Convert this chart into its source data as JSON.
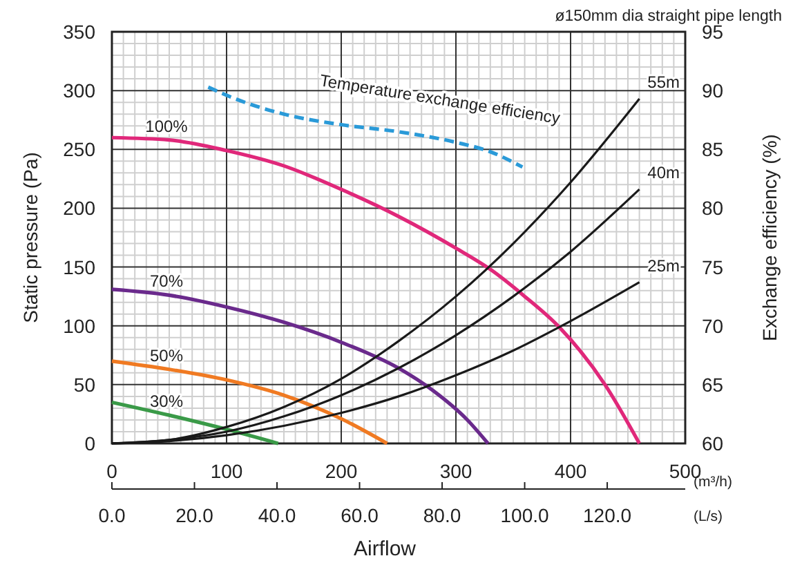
{
  "chart_data": {
    "type": "line",
    "xlabel": "Airflow",
    "ylabel": "Static pressure (Pa)",
    "y2label": "Exchange efficiency (%)",
    "annotations": [
      "ø150mm dia straight pipe length",
      "(m³/h)",
      "(L/s)"
    ],
    "xlim": [
      0,
      500
    ],
    "xticks": [
      0,
      100,
      200,
      300,
      400,
      500
    ],
    "x2lim": [
      0,
      138.9
    ],
    "x2ticks": [
      {
        "value": 0,
        "label": "0.0"
      },
      {
        "value": 20,
        "label": "20.0"
      },
      {
        "value": 40,
        "label": "40.0"
      },
      {
        "value": 60,
        "label": "60.0"
      },
      {
        "value": 80,
        "label": "80.0"
      },
      {
        "value": 100,
        "label": "100.0"
      },
      {
        "value": 120,
        "label": "120.0"
      }
    ],
    "ylim": [
      0,
      350
    ],
    "yticks": [
      0,
      50,
      100,
      150,
      200,
      250,
      300,
      350
    ],
    "y2lim": [
      60,
      95
    ],
    "y2ticks": [
      60,
      65,
      70,
      75,
      80,
      85,
      90,
      95
    ],
    "grid": true,
    "marker": "none",
    "line_style": "solid",
    "series": [
      {
        "name": "100%",
        "color": "#e0287a",
        "x": [
          0,
          50,
          100,
          150,
          200,
          250,
          300,
          330,
          360,
          390,
          430,
          460
        ],
        "values": [
          260,
          258,
          249,
          236,
          216,
          193,
          166,
          148,
          125,
          99,
          50,
          0
        ]
      },
      {
        "name": "70%",
        "color": "#6a2a8c",
        "x": [
          0,
          50,
          100,
          150,
          200,
          250,
          280,
          310,
          328
        ],
        "values": [
          131,
          126,
          116,
          103,
          86,
          64,
          45,
          20,
          0
        ]
      },
      {
        "name": "50%",
        "color": "#f07a22",
        "x": [
          0,
          50,
          100,
          150,
          200,
          240
        ],
        "values": [
          70,
          63,
          54,
          41,
          21,
          0
        ]
      },
      {
        "name": "30%",
        "color": "#3a9a48",
        "x": [
          0,
          50,
          100,
          145
        ],
        "values": [
          35,
          24,
          12,
          0
        ]
      },
      {
        "name": "55m",
        "color": "#1a1a1a",
        "x": [
          0,
          50,
          100,
          150,
          200,
          250,
          300,
          350,
          400,
          460
        ],
        "values": [
          0,
          3,
          14,
          31,
          55,
          87,
          125,
          170,
          222,
          293
        ]
      },
      {
        "name": "40m",
        "color": "#1a1a1a",
        "x": [
          0,
          50,
          100,
          150,
          200,
          250,
          300,
          350,
          400,
          460
        ],
        "values": [
          0,
          3,
          10,
          23,
          41,
          64,
          92,
          125,
          163,
          216
        ]
      },
      {
        "name": "25m",
        "color": "#1a1a1a",
        "x": [
          0,
          50,
          100,
          150,
          200,
          250,
          300,
          350,
          400,
          460
        ],
        "values": [
          0,
          2,
          7,
          15,
          26,
          40,
          58,
          79,
          104,
          137
        ]
      },
      {
        "name": "Temperature exchange efficiency",
        "color": "#2a9ad8",
        "axis": "y2",
        "line_style": "dashed",
        "x": [
          84,
          100,
          150,
          200,
          250,
          300,
          330,
          358
        ],
        "values": [
          90.3,
          89.6,
          88.0,
          87.1,
          86.5,
          85.6,
          84.8,
          83.5
        ]
      }
    ]
  }
}
